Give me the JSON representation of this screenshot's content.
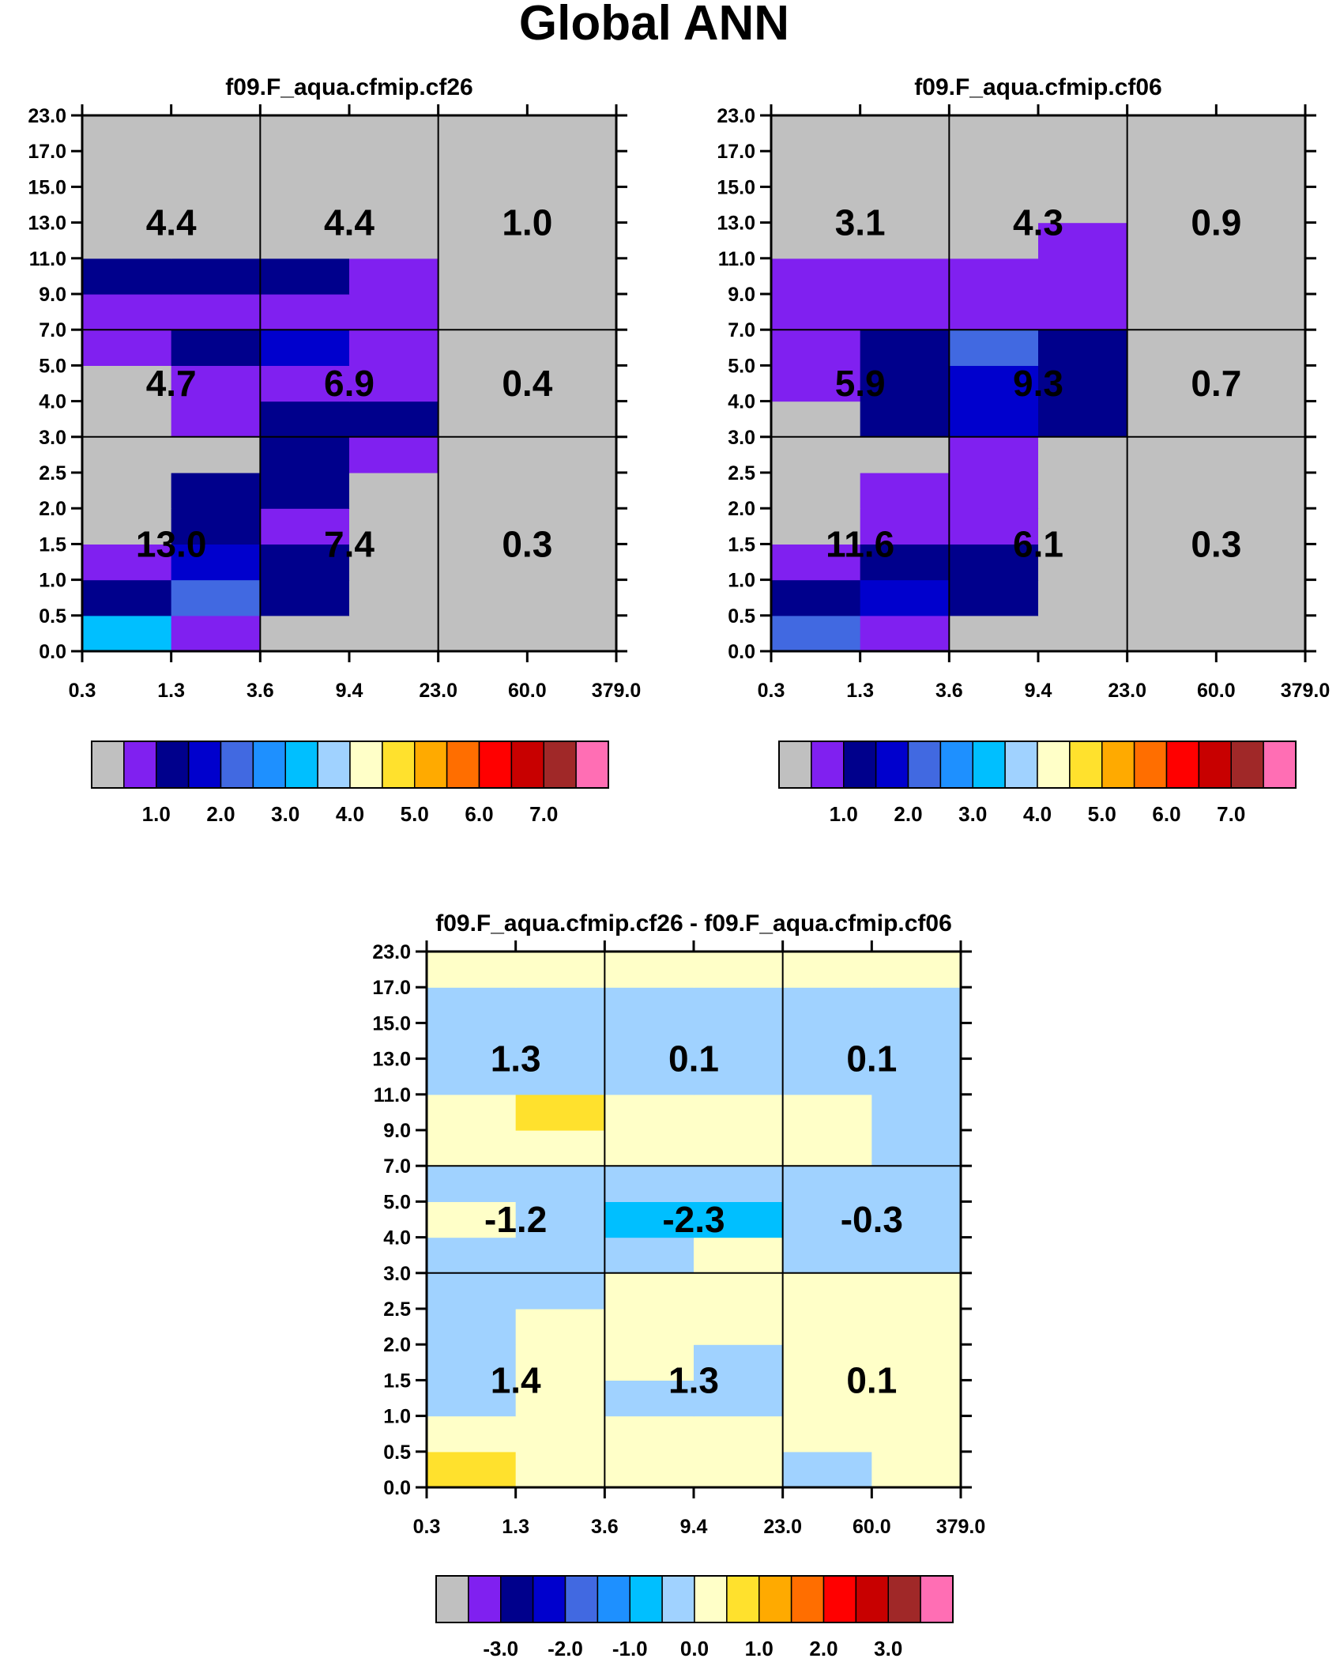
{
  "title": "Global ANN",
  "y_tick_labels": [
    "0.0",
    "0.5",
    "1.0",
    "1.5",
    "2.0",
    "2.5",
    "3.0",
    "4.0",
    "5.0",
    "7.0",
    "9.0",
    "11.0",
    "13.0",
    "15.0",
    "17.0",
    "23.0"
  ],
  "x_tick_labels": [
    "0.3",
    "1.3",
    "3.6",
    "9.4",
    "23.0",
    "60.0",
    "379.0"
  ],
  "colormap": {
    "main_colors": [
      "#c0c0c0",
      "#8020f0",
      "#00008c",
      "#0000cd",
      "#4169e1",
      "#1e90ff",
      "#00bfff",
      "#a0d2ff",
      "#ffffc8",
      "#ffe12d",
      "#ffaa00",
      "#ff6e00",
      "#ff0000",
      "#c80000",
      "#a02828",
      "#ff6eb4"
    ],
    "main_labels": [
      "1.0",
      "2.0",
      "3.0",
      "4.0",
      "5.0",
      "6.0",
      "7.0"
    ],
    "diff_colors": [
      "#c0c0c0",
      "#8020f0",
      "#00008c",
      "#0000cd",
      "#4169e1",
      "#1e90ff",
      "#00bfff",
      "#a0d2ff",
      "#ffffc8",
      "#ffe12d",
      "#ffaa00",
      "#ff6e00",
      "#ff0000",
      "#c80000",
      "#a02828",
      "#ff6eb4"
    ],
    "diff_labels": [
      "-3.0",
      "-2.0",
      "-1.0",
      "0.0",
      "1.0",
      "2.0",
      "3.0"
    ]
  },
  "chart_data": [
    {
      "type": "heatmap",
      "title": "f09.F_aqua.cfmip.cf26",
      "x_bin_edges": [
        "0.3",
        "1.3",
        "3.6",
        "9.4",
        "23.0",
        "60.0",
        "379.0"
      ],
      "y_bin_edges": [
        "0.0",
        "0.5",
        "1.0",
        "1.5",
        "2.0",
        "2.5",
        "3.0",
        "4.0",
        "5.0",
        "7.0",
        "9.0",
        "11.0",
        "13.0",
        "15.0",
        "17.0",
        "23.0"
      ],
      "cell_color_index_rows_bottom_to_top": [
        [
          6,
          1,
          0,
          0,
          0,
          0
        ],
        [
          2,
          4,
          2,
          0,
          0,
          0
        ],
        [
          1,
          3,
          2,
          0,
          0,
          0
        ],
        [
          0,
          2,
          1,
          0,
          0,
          0
        ],
        [
          0,
          2,
          2,
          0,
          0,
          0
        ],
        [
          0,
          0,
          2,
          1,
          0,
          0
        ],
        [
          0,
          1,
          2,
          2,
          0,
          0
        ],
        [
          0,
          1,
          1,
          1,
          0,
          0
        ],
        [
          1,
          2,
          3,
          1,
          0,
          0
        ],
        [
          1,
          1,
          1,
          1,
          0,
          0
        ],
        [
          2,
          2,
          2,
          1,
          0,
          0
        ],
        [
          0,
          0,
          0,
          0,
          0,
          0
        ],
        [
          0,
          0,
          0,
          0,
          0,
          0
        ],
        [
          0,
          0,
          0,
          0,
          0,
          0
        ],
        [
          0,
          0,
          0,
          0,
          0,
          0
        ]
      ],
      "group_values": [
        {
          "label": "4.4",
          "x_group": 0,
          "y_group": 2
        },
        {
          "label": "4.4",
          "x_group": 1,
          "y_group": 2
        },
        {
          "label": "1.0",
          "x_group": 2,
          "y_group": 2
        },
        {
          "label": "4.7",
          "x_group": 0,
          "y_group": 1
        },
        {
          "label": "6.9",
          "x_group": 1,
          "y_group": 1
        },
        {
          "label": "0.4",
          "x_group": 2,
          "y_group": 1
        },
        {
          "label": "13.0",
          "x_group": 0,
          "y_group": 0
        },
        {
          "label": "7.4",
          "x_group": 1,
          "y_group": 0
        },
        {
          "label": "0.3",
          "x_group": 2,
          "y_group": 0
        }
      ]
    },
    {
      "type": "heatmap",
      "title": "f09.F_aqua.cfmip.cf06",
      "x_bin_edges": [
        "0.3",
        "1.3",
        "3.6",
        "9.4",
        "23.0",
        "60.0",
        "379.0"
      ],
      "y_bin_edges": [
        "0.0",
        "0.5",
        "1.0",
        "1.5",
        "2.0",
        "2.5",
        "3.0",
        "4.0",
        "5.0",
        "7.0",
        "9.0",
        "11.0",
        "13.0",
        "15.0",
        "17.0",
        "23.0"
      ],
      "cell_color_index_rows_bottom_to_top": [
        [
          4,
          1,
          0,
          0,
          0,
          0
        ],
        [
          2,
          3,
          2,
          0,
          0,
          0
        ],
        [
          1,
          2,
          2,
          0,
          0,
          0
        ],
        [
          0,
          1,
          1,
          0,
          0,
          0
        ],
        [
          0,
          1,
          1,
          0,
          0,
          0
        ],
        [
          0,
          0,
          1,
          0,
          0,
          0
        ],
        [
          0,
          2,
          3,
          2,
          0,
          0
        ],
        [
          1,
          2,
          3,
          2,
          0,
          0
        ],
        [
          1,
          2,
          4,
          2,
          0,
          0
        ],
        [
          1,
          1,
          1,
          1,
          0,
          0
        ],
        [
          1,
          1,
          1,
          1,
          0,
          0
        ],
        [
          0,
          0,
          0,
          1,
          0,
          0
        ],
        [
          0,
          0,
          0,
          0,
          0,
          0
        ],
        [
          0,
          0,
          0,
          0,
          0,
          0
        ],
        [
          0,
          0,
          0,
          0,
          0,
          0
        ]
      ],
      "group_values": [
        {
          "label": "3.1",
          "x_group": 0,
          "y_group": 2
        },
        {
          "label": "4.3",
          "x_group": 1,
          "y_group": 2
        },
        {
          "label": "0.9",
          "x_group": 2,
          "y_group": 2
        },
        {
          "label": "5.9",
          "x_group": 0,
          "y_group": 1
        },
        {
          "label": "9.3",
          "x_group": 1,
          "y_group": 1
        },
        {
          "label": "0.7",
          "x_group": 2,
          "y_group": 1
        },
        {
          "label": "11.6",
          "x_group": 0,
          "y_group": 0
        },
        {
          "label": "6.1",
          "x_group": 1,
          "y_group": 0
        },
        {
          "label": "0.3",
          "x_group": 2,
          "y_group": 0
        }
      ]
    },
    {
      "type": "heatmap",
      "title": "f09.F_aqua.cfmip.cf26 - f09.F_aqua.cfmip.cf06",
      "x_bin_edges": [
        "0.3",
        "1.3",
        "3.6",
        "9.4",
        "23.0",
        "60.0",
        "379.0"
      ],
      "y_bin_edges": [
        "0.0",
        "0.5",
        "1.0",
        "1.5",
        "2.0",
        "2.5",
        "3.0",
        "4.0",
        "5.0",
        "7.0",
        "9.0",
        "11.0",
        "13.0",
        "15.0",
        "17.0",
        "23.0"
      ],
      "cell_color_index_rows_bottom_to_top": [
        [
          9,
          8,
          8,
          8,
          7,
          8
        ],
        [
          8,
          8,
          8,
          8,
          8,
          8
        ],
        [
          7,
          8,
          7,
          7,
          8,
          8
        ],
        [
          7,
          8,
          8,
          7,
          8,
          8
        ],
        [
          7,
          8,
          8,
          8,
          8,
          8
        ],
        [
          7,
          7,
          8,
          8,
          8,
          8
        ],
        [
          7,
          7,
          7,
          8,
          7,
          7
        ],
        [
          8,
          7,
          6,
          6,
          7,
          7
        ],
        [
          7,
          7,
          7,
          7,
          7,
          7
        ],
        [
          8,
          8,
          8,
          8,
          8,
          7
        ],
        [
          8,
          9,
          8,
          8,
          8,
          7
        ],
        [
          7,
          7,
          7,
          7,
          7,
          7
        ],
        [
          7,
          7,
          7,
          7,
          7,
          7
        ],
        [
          7,
          7,
          7,
          7,
          7,
          7
        ],
        [
          8,
          8,
          8,
          8,
          8,
          8
        ]
      ],
      "group_values": [
        {
          "label": "1.3",
          "x_group": 0,
          "y_group": 2
        },
        {
          "label": "0.1",
          "x_group": 1,
          "y_group": 2
        },
        {
          "label": "0.1",
          "x_group": 2,
          "y_group": 2
        },
        {
          "label": "-1.2",
          "x_group": 0,
          "y_group": 1
        },
        {
          "label": "-2.3",
          "x_group": 1,
          "y_group": 1
        },
        {
          "label": "-0.3",
          "x_group": 2,
          "y_group": 1
        },
        {
          "label": "1.4",
          "x_group": 0,
          "y_group": 0
        },
        {
          "label": "1.3",
          "x_group": 1,
          "y_group": 0
        },
        {
          "label": "0.1",
          "x_group": 2,
          "y_group": 0
        }
      ]
    }
  ]
}
